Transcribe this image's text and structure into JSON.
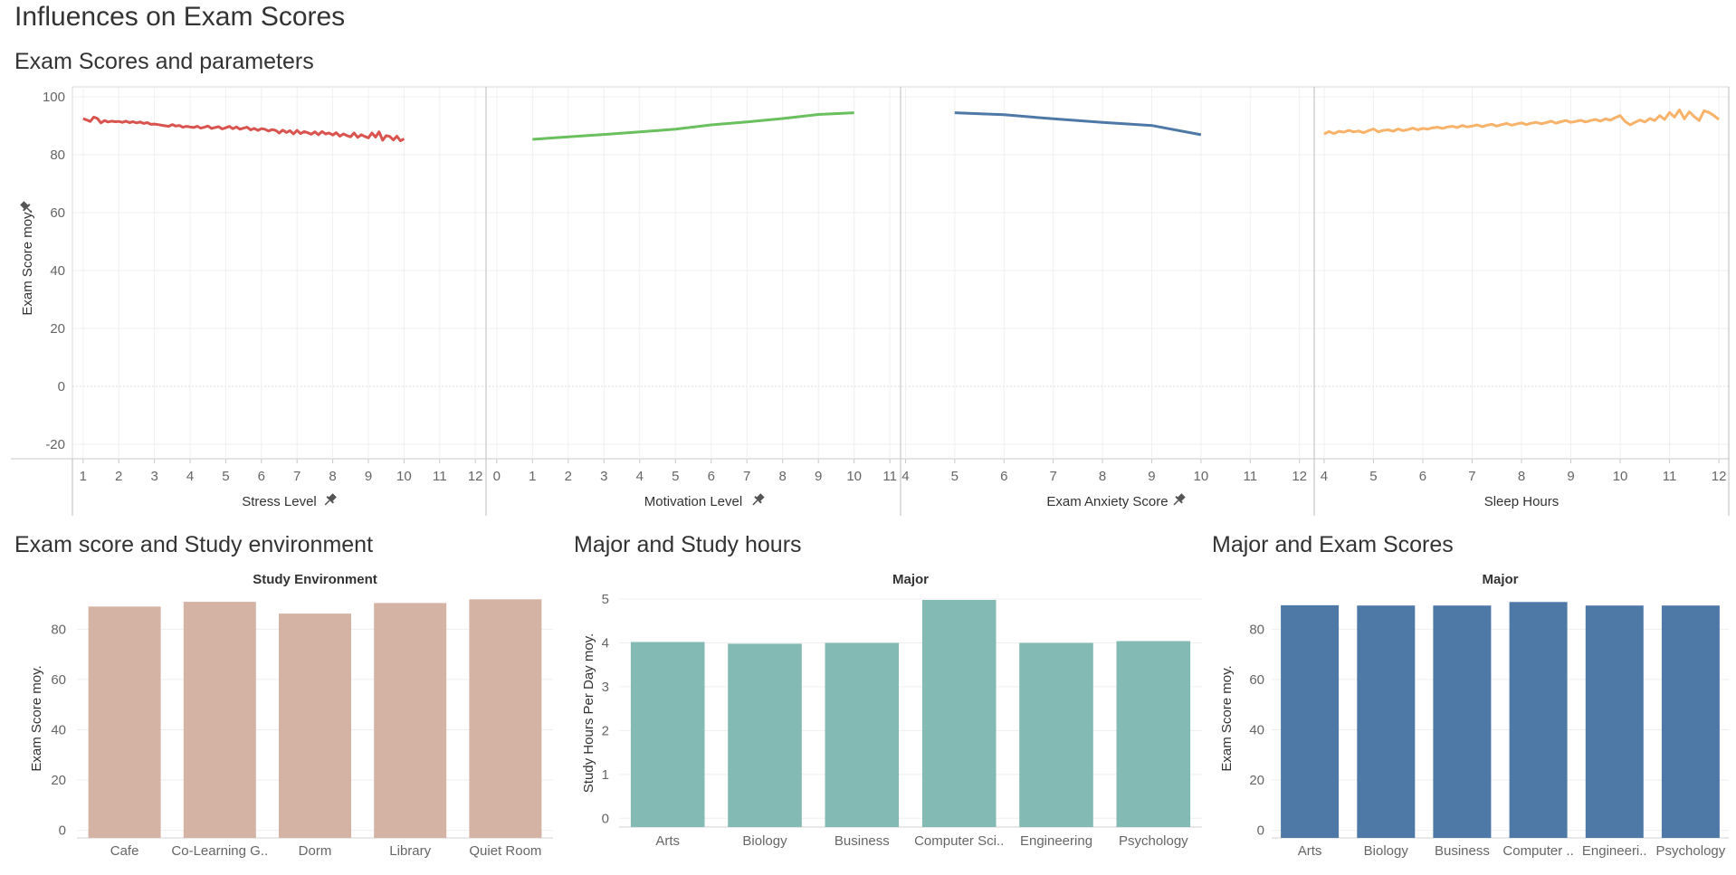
{
  "dashboard": {
    "title": "Influences on Exam Scores"
  },
  "pin_icon": "pin-icon",
  "chart_data": [
    {
      "type": "line",
      "title": "Exam Scores and parameters",
      "ylabel": "Exam Score moy.",
      "ylim": [
        -25,
        100
      ],
      "yticks": [
        100,
        80,
        60,
        40,
        20,
        0,
        -20
      ],
      "grid": true,
      "panels": [
        {
          "xlabel": "Stress Level",
          "pinned": true,
          "color": "#d9534f",
          "xlim": [
            0.7,
            12.3
          ],
          "xticks": [
            1,
            2,
            3,
            4,
            5,
            6,
            7,
            8,
            9,
            10,
            11,
            12
          ],
          "x": [
            1,
            1.1,
            1.2,
            1.3,
            1.4,
            1.5,
            1.6,
            1.7,
            1.8,
            1.9,
            2,
            2.1,
            2.2,
            2.3,
            2.4,
            2.5,
            2.6,
            2.7,
            2.8,
            2.9,
            3,
            3.1,
            3.2,
            3.3,
            3.4,
            3.5,
            3.6,
            3.7,
            3.8,
            3.9,
            4,
            4.1,
            4.2,
            4.3,
            4.4,
            4.5,
            4.6,
            4.7,
            4.8,
            4.9,
            5,
            5.1,
            5.2,
            5.3,
            5.4,
            5.5,
            5.6,
            5.7,
            5.8,
            5.9,
            6,
            6.1,
            6.2,
            6.3,
            6.4,
            6.5,
            6.6,
            6.7,
            6.8,
            6.9,
            7,
            7.1,
            7.2,
            7.3,
            7.4,
            7.5,
            7.6,
            7.7,
            7.8,
            7.9,
            8,
            8.1,
            8.2,
            8.3,
            8.4,
            8.5,
            8.6,
            8.7,
            8.8,
            8.9,
            9,
            9.1,
            9.2,
            9.3,
            9.4,
            9.5,
            9.6,
            9.7,
            9.8,
            9.9,
            10
          ],
          "y": [
            92.5,
            92,
            91.5,
            93,
            92.5,
            91,
            91.8,
            91.3,
            91.6,
            91.4,
            91.5,
            91.2,
            91.6,
            91.1,
            91.4,
            91,
            91.3,
            90.8,
            91.1,
            90.5,
            90.6,
            90.4,
            90.2,
            90,
            89.8,
            90.4,
            89.9,
            90.1,
            89.5,
            89.8,
            89.6,
            89.4,
            89.8,
            89.2,
            89.5,
            89.9,
            89.1,
            89.4,
            89.7,
            88.9,
            89.3,
            89.8,
            89,
            89.6,
            88.8,
            89.2,
            89.5,
            88.6,
            89.1,
            88.4,
            89,
            88.8,
            88.2,
            88.7,
            88.4,
            87.5,
            88.5,
            87.7,
            88.3,
            87.2,
            88.4,
            87.3,
            88,
            87.6,
            87.1,
            87.9,
            86.9,
            88,
            87.2,
            87.5,
            86.8,
            87.6,
            86.4,
            87.2,
            86.6,
            86.2,
            87.5,
            86,
            86.9,
            86.3,
            85.8,
            87.5,
            86.1,
            87.9,
            85,
            86.6,
            86.3,
            85.1,
            86.4,
            84.8,
            85.5
          ]
        },
        {
          "xlabel": "Motivation Level",
          "pinned": true,
          "color": "#6abf5e",
          "xlim": [
            -0.3,
            11.3
          ],
          "xticks": [
            0,
            1,
            2,
            3,
            4,
            5,
            6,
            7,
            8,
            9,
            10,
            11
          ],
          "x": [
            1,
            2,
            3,
            4,
            5,
            6,
            7,
            8,
            9,
            10
          ],
          "y": [
            85.3,
            86.2,
            87.0,
            87.9,
            88.8,
            90.3,
            91.3,
            92.5,
            93.9,
            94.5
          ]
        },
        {
          "xlabel": "Exam Anxiety Score",
          "pinned": true,
          "color": "#4e79a7",
          "xlim": [
            3.9,
            12.3
          ],
          "xticks": [
            4,
            5,
            6,
            7,
            8,
            9,
            10,
            11,
            12
          ],
          "x": [
            5,
            6,
            7,
            8,
            9,
            10
          ],
          "y": [
            94.5,
            93.8,
            92.4,
            91.2,
            90.1,
            86.9
          ]
        },
        {
          "xlabel": "Sleep Hours",
          "pinned": false,
          "color": "#f8b26a",
          "xlim": [
            3.8,
            12.2
          ],
          "xticks": [
            4,
            5,
            6,
            7,
            8,
            9,
            10,
            11,
            12
          ],
          "x": [
            4,
            4.1,
            4.2,
            4.3,
            4.4,
            4.5,
            4.6,
            4.7,
            4.8,
            4.9,
            5,
            5.1,
            5.2,
            5.3,
            5.4,
            5.5,
            5.6,
            5.7,
            5.8,
            5.9,
            6,
            6.1,
            6.2,
            6.3,
            6.4,
            6.5,
            6.6,
            6.7,
            6.8,
            6.9,
            7,
            7.1,
            7.2,
            7.3,
            7.4,
            7.5,
            7.6,
            7.7,
            7.8,
            7.9,
            8,
            8.1,
            8.2,
            8.3,
            8.4,
            8.5,
            8.6,
            8.7,
            8.8,
            8.9,
            9,
            9.1,
            9.2,
            9.3,
            9.4,
            9.5,
            9.6,
            9.7,
            9.8,
            9.9,
            10,
            10.1,
            10.2,
            10.3,
            10.4,
            10.5,
            10.6,
            10.7,
            10.8,
            10.9,
            11,
            11.1,
            11.2,
            11.3,
            11.4,
            11.5,
            11.6,
            11.7,
            11.8,
            11.9,
            12
          ],
          "y": [
            87.2,
            88,
            87.3,
            88.1,
            87.8,
            88.4,
            87.9,
            88.2,
            87.6,
            88.3,
            88.9,
            87.9,
            88.4,
            88.6,
            88.1,
            88.9,
            88.3,
            88.7,
            89.2,
            88.6,
            89.1,
            88.8,
            89.3,
            89.5,
            89.1,
            89.6,
            89.8,
            89.4,
            90.1,
            89.6,
            89.9,
            90.3,
            89.7,
            90.2,
            90.5,
            89.9,
            90.4,
            90.8,
            90.2,
            90.6,
            91,
            90.4,
            90.9,
            91.2,
            90.7,
            91.1,
            91.6,
            90.9,
            91.4,
            91.8,
            91.2,
            91.5,
            91.9,
            91.3,
            91.8,
            92.2,
            91.6,
            92.4,
            91.9,
            92.8,
            93.5,
            91.5,
            90.3,
            91.2,
            92,
            91.3,
            92.5,
            91.8,
            93.5,
            92.2,
            94.6,
            93,
            95.5,
            92.4,
            94.8,
            93.2,
            91.8,
            95.2,
            94.6,
            93.5,
            92.2
          ]
        }
      ]
    },
    {
      "type": "bar",
      "title": "Exam score and Study environment",
      "header": "Study Environment",
      "ylabel": "Exam Score moy.",
      "color": "#d4b2a4",
      "ylim": [
        -3,
        92
      ],
      "yticks": [
        0,
        20,
        40,
        60,
        80
      ],
      "categories": [
        "Cafe",
        "Co-Learning G..",
        "Dorm",
        "Library",
        "Quiet Room"
      ],
      "values": [
        89.0,
        90.9,
        86.2,
        90.4,
        91.9
      ]
    },
    {
      "type": "bar",
      "title": "Major and Study hours",
      "header": "Major",
      "ylabel": "Study Hours Per Day moy.",
      "color": "#84bab4",
      "ylim": [
        -0.2,
        5
      ],
      "yticks": [
        0,
        1,
        2,
        3,
        4,
        5
      ],
      "categories": [
        "Arts",
        "Biology",
        "Business",
        "Computer Sci..",
        "Engineering",
        "Psychology"
      ],
      "values": [
        4.02,
        3.98,
        4.0,
        4.98,
        4.0,
        4.04
      ]
    },
    {
      "type": "bar",
      "title": "Major and Exam Scores",
      "header": "Major",
      "ylabel": "Exam Score moy.",
      "color": "#4e79a7",
      "ylim": [
        -3,
        92
      ],
      "yticks": [
        0,
        20,
        40,
        60,
        80
      ],
      "categories": [
        "Arts",
        "Biology",
        "Business",
        "Computer ..",
        "Engineeri..",
        "Psychology"
      ],
      "values": [
        89.5,
        89.4,
        89.4,
        90.8,
        89.4,
        89.4
      ]
    }
  ]
}
